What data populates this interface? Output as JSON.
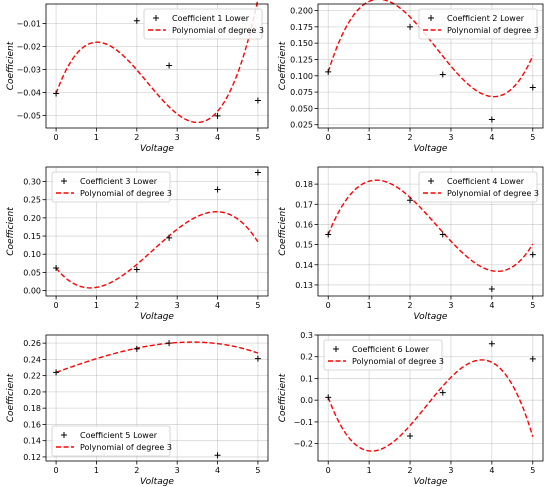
{
  "chart_data": [
    {
      "type": "scatter",
      "xlabel": "Voltage",
      "ylabel": "Coefficient",
      "xlim": [
        -0.25,
        5.25
      ],
      "ylim": [
        -0.0555,
        -0.0015
      ],
      "xticks": [
        0,
        1,
        2,
        3,
        4,
        5
      ],
      "yticks": [
        -0.05,
        -0.04,
        -0.03,
        -0.02,
        -0.01
      ],
      "ytick_labels": [
        "−0.05",
        "−0.04",
        "−0.03",
        "−0.02",
        "−0.01"
      ],
      "legend_position": "top-right",
      "grid": true,
      "series": [
        {
          "name": "Coefficient 1 Lower",
          "kind": "marker",
          "x": [
            0,
            2,
            2.8,
            4,
            5
          ],
          "y": [
            -0.0405,
            -0.0088,
            -0.0283,
            -0.0502,
            -0.0435
          ]
        },
        {
          "name": "Polynomial of degree 3",
          "kind": "line",
          "color": "#ff0000",
          "coeffs": [
            -0.0405,
            0.0487,
            -0.0309,
            0.00456
          ]
        }
      ]
    },
    {
      "type": "scatter",
      "xlabel": "Voltage",
      "ylabel": "Coefficient",
      "xlim": [
        -0.25,
        5.25
      ],
      "ylim": [
        0.02,
        0.21
      ],
      "xticks": [
        0,
        1,
        2,
        3,
        4,
        5
      ],
      "yticks": [
        0.025,
        0.05,
        0.075,
        0.1,
        0.125,
        0.15,
        0.175,
        0.2
      ],
      "ytick_labels": [
        "0.025",
        "0.050",
        "0.075",
        "0.100",
        "0.125",
        "0.150",
        "0.175",
        "0.200"
      ],
      "legend_position": "top-right",
      "grid": true,
      "series": [
        {
          "name": "Coefficient 2 Lower",
          "kind": "marker",
          "x": [
            0,
            2,
            2.8,
            4,
            5
          ],
          "y": [
            0.106,
            0.175,
            0.102,
            0.033,
            0.082
          ]
        },
        {
          "name": "Polynomial of degree 3",
          "kind": "line",
          "color": "#ff0000",
          "coeffs": [
            0.106,
            0.2007,
            -0.1061,
            0.01339
          ]
        }
      ]
    },
    {
      "type": "scatter",
      "xlabel": "Voltage",
      "ylabel": "Coefficient",
      "xlim": [
        -0.25,
        5.25
      ],
      "ylim": [
        -0.015,
        0.34
      ],
      "xticks": [
        0,
        1,
        2,
        3,
        4,
        5
      ],
      "yticks": [
        0,
        0.05,
        0.1,
        0.15,
        0.2,
        0.25,
        0.3
      ],
      "ytick_labels": [
        "0.00",
        "0.05",
        "0.10",
        "0.15",
        "0.20",
        "0.25",
        "0.30"
      ],
      "legend_position": "top-left",
      "grid": true,
      "series": [
        {
          "name": "Coefficient 3 Lower",
          "kind": "marker",
          "x": [
            0,
            2,
            2.8,
            4,
            5
          ],
          "y": [
            0.062,
            0.058,
            0.145,
            0.278,
            0.325
          ]
        },
        {
          "name": "Polynomial of degree 3",
          "kind": "line",
          "color": "#ff0000",
          "coeffs": [
            0.062,
            -0.1389,
            0.0994,
            -0.01375
          ]
        }
      ]
    },
    {
      "type": "scatter",
      "xlabel": "Voltage",
      "ylabel": "Coefficient",
      "xlim": [
        -0.25,
        5.25
      ],
      "ylim": [
        0.1245,
        0.1885
      ],
      "xticks": [
        0,
        1,
        2,
        3,
        4,
        5
      ],
      "yticks": [
        0.13,
        0.14,
        0.15,
        0.16,
        0.17,
        0.18
      ],
      "ytick_labels": [
        "0.13",
        "0.14",
        "0.15",
        "0.16",
        "0.17",
        "0.18"
      ],
      "legend_position": "top-right",
      "grid": true,
      "series": [
        {
          "name": "Coefficient 4 Lower",
          "kind": "marker",
          "x": [
            0,
            2,
            2.8,
            4,
            5
          ],
          "y": [
            0.155,
            0.172,
            0.155,
            0.128,
            0.145
          ]
        },
        {
          "name": "Polynomial of degree 3",
          "kind": "line",
          "color": "#ff0000",
          "coeffs": [
            0.155,
            0.05064,
            -0.02765,
            0.003467
          ]
        }
      ]
    },
    {
      "type": "scatter",
      "xlabel": "Voltage",
      "ylabel": "Coefficient",
      "xlim": [
        -0.25,
        5.25
      ],
      "ylim": [
        0.115,
        0.27
      ],
      "xticks": [
        0,
        1,
        2,
        3,
        4,
        5
      ],
      "yticks": [
        0.12,
        0.14,
        0.16,
        0.18,
        0.2,
        0.22,
        0.24,
        0.26
      ],
      "ytick_labels": [
        "0.12",
        "0.14",
        "0.16",
        "0.18",
        "0.20",
        "0.22",
        "0.24",
        "0.26"
      ],
      "legend_position": "bottom-left",
      "grid": true,
      "series": [
        {
          "name": "Coefficient 5 Lower",
          "kind": "marker",
          "x": [
            0,
            2,
            2.8,
            4,
            5
          ],
          "y": [
            0.224,
            0.253,
            0.26,
            0.122,
            0.241
          ]
        },
        {
          "name": "Polynomial of degree 3",
          "kind": "line",
          "color": "#ff0000",
          "coeffs": [
            0.224,
            0.0181,
            -0.00089,
            -0.000356
          ]
        }
      ]
    },
    {
      "type": "scatter",
      "xlabel": "Voltage",
      "ylabel": "Coefficient",
      "xlim": [
        -0.25,
        5.25
      ],
      "ylim": [
        -0.28,
        0.3
      ],
      "xticks": [
        0,
        1,
        2,
        3,
        4,
        5
      ],
      "yticks": [
        -0.2,
        -0.1,
        0,
        0.1,
        0.2,
        0.3
      ],
      "ytick_labels": [
        "−0.2",
        "−0.1",
        "0.0",
        "0.1",
        "0.2",
        "0.3"
      ],
      "legend_position": "top-left",
      "grid": true,
      "series": [
        {
          "name": "Coefficient 6 Lower",
          "kind": "marker",
          "x": [
            0,
            2,
            2.8,
            4,
            5
          ],
          "y": [
            0.013,
            -0.165,
            0.035,
            0.26,
            0.19
          ]
        },
        {
          "name": "Polynomial of degree 3",
          "kind": "line",
          "color": "#ff0000",
          "coeffs": [
            0.013,
            -0.5142,
            0.3107,
            -0.04302
          ]
        }
      ]
    }
  ]
}
